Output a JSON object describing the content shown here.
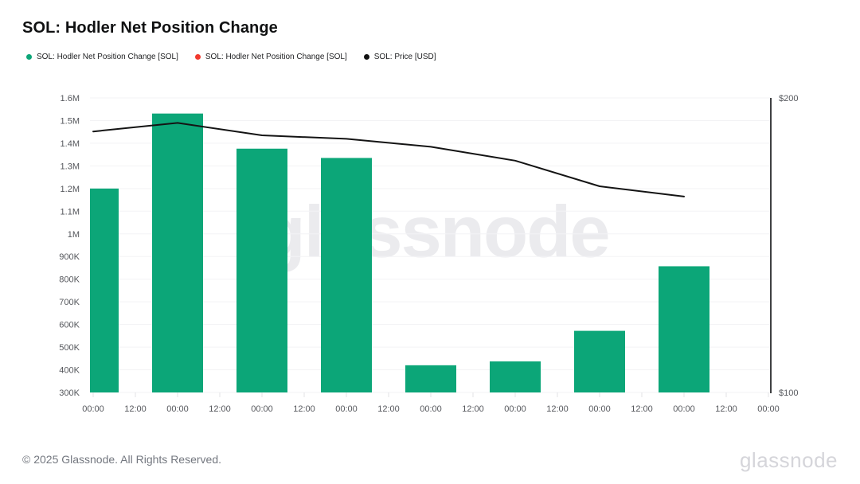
{
  "header": {
    "title": "SOL: Hodler Net Position Change"
  },
  "legend": {
    "items": [
      {
        "label": "SOL: Hodler Net Position Change [SOL]",
        "color": "#0ca678"
      },
      {
        "label": "SOL: Hodler Net Position Change [SOL]",
        "color": "#f2392e"
      },
      {
        "label": "SOL: Price [USD]",
        "color": "#121212"
      }
    ]
  },
  "watermark": "glassnode",
  "chart_data": {
    "type": "bar",
    "title": "SOL: Hodler Net Position Change",
    "x_tick_labels": [
      "00:00",
      "12:00",
      "00:00",
      "12:00",
      "00:00",
      "12:00",
      "00:00",
      "12:00",
      "00:00",
      "12:00",
      "00:00",
      "12:00",
      "00:00",
      "12:00",
      "00:00",
      "12:00",
      "00:00"
    ],
    "series": [
      {
        "name": "SOL: Hodler Net Position Change [SOL]",
        "type": "bar",
        "axis": "left",
        "color": "#0ca678",
        "tick_index": [
          0,
          2,
          4,
          6,
          8,
          10,
          12,
          14
        ],
        "values": [
          1200000,
          1531000,
          1376000,
          1335000,
          420000,
          437000,
          572000,
          857000
        ]
      },
      {
        "name": "SOL: Price [USD]",
        "type": "line",
        "axis": "right",
        "color": "#141414",
        "tick_index": [
          0,
          2,
          4,
          6,
          8,
          10,
          12,
          14
        ],
        "values": [
          188.6,
          191.5,
          187.3,
          186.1,
          183.4,
          178.7,
          170.0,
          166.5
        ]
      }
    ],
    "left_axis": {
      "range": [
        300000,
        1600000
      ],
      "tick_values": [
        1600000,
        1500000,
        1400000,
        1300000,
        1200000,
        1100000,
        1000000,
        900000,
        800000,
        700000,
        600000,
        500000,
        400000,
        300000
      ],
      "tick_labels": [
        "1.6M",
        "1.5M",
        "1.4M",
        "1.3M",
        "1.2M",
        "1.1M",
        "1M",
        "900K",
        "800K",
        "700K",
        "600K",
        "500K",
        "400K",
        "300K"
      ]
    },
    "right_axis": {
      "range": [
        100,
        200
      ],
      "tick_values": [
        200,
        100
      ],
      "tick_labels": [
        "$200",
        "$100"
      ]
    },
    "grid": "horizontal",
    "legend_position": "top-left"
  },
  "footer": {
    "copyright": "© 2025 Glassnode. All Rights Reserved.",
    "logo": "glassnode"
  }
}
